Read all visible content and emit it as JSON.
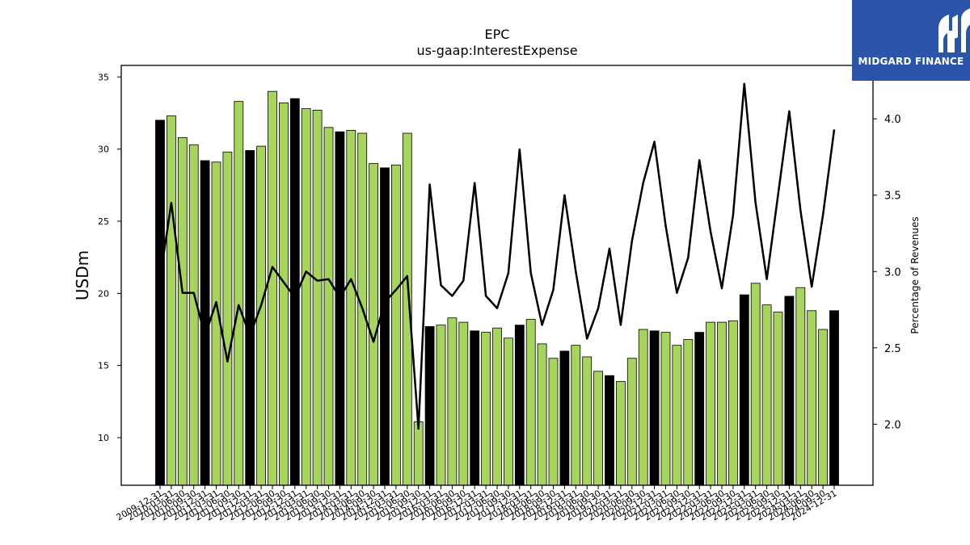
{
  "chart_data": {
    "type": "bar",
    "title": "EPC",
    "subtitle": "us-gaap:InterestExpense",
    "ylabel": "USDm",
    "y2label": "Percentage of Revenues",
    "ylim": [
      6.7,
      35.8
    ],
    "y2lim": [
      1.6,
      4.35
    ],
    "yticks": [
      10,
      15,
      20,
      25,
      30,
      35
    ],
    "y2ticks": [
      2.0,
      2.5,
      3.0,
      3.5,
      4.0
    ],
    "categories": [
      "2009-12-31",
      "2010-03-31",
      "2010-06-30",
      "2010-09-30",
      "2010-12-31",
      "2011-03-31",
      "2011-06-30",
      "2011-09-30",
      "2011-12-31",
      "2012-03-31",
      "2012-06-30",
      "2012-09-30",
      "2012-12-31",
      "2013-03-31",
      "2013-06-30",
      "2013-09-30",
      "2013-12-31",
      "2014-03-31",
      "2014-06-30",
      "2014-09-30",
      "2014-12-31",
      "2015-03-31",
      "2015-06-30",
      "2015-09-30",
      "2015-12-31",
      "2016-03-31",
      "2016-06-30",
      "2016-09-30",
      "2016-12-31",
      "2017-03-31",
      "2017-06-30",
      "2017-09-30",
      "2017-12-31",
      "2018-03-31",
      "2018-06-30",
      "2018-09-30",
      "2018-12-31",
      "2019-03-31",
      "2019-06-30",
      "2019-09-30",
      "2019-12-31",
      "2020-03-31",
      "2020-06-30",
      "2020-09-30",
      "2020-12-31",
      "2021-03-31",
      "2021-06-30",
      "2021-09-30",
      "2021-12-31",
      "2022-03-31",
      "2022-06-30",
      "2022-09-30",
      "2022-12-31",
      "2023-03-31",
      "2023-06-30",
      "2023-09-30",
      "2023-12-31",
      "2024-03-31",
      "2024-06-30",
      "2024-09-30",
      "2024-12-31"
    ],
    "series": [
      {
        "kind": "bar",
        "values": [
          32.0,
          32.3,
          30.8,
          30.3,
          29.2,
          29.1,
          29.8,
          33.3,
          29.9,
          30.2,
          34.0,
          33.2,
          33.5,
          32.8,
          32.7,
          31.5,
          31.2,
          31.3,
          31.1,
          29.0,
          28.7,
          28.9,
          31.1,
          11.1,
          17.7,
          17.8,
          18.3,
          18.0,
          17.4,
          17.3,
          17.6,
          16.9,
          17.8,
          18.2,
          16.5,
          15.5,
          16.0,
          16.4,
          15.6,
          14.6,
          14.3,
          13.9,
          15.5,
          17.5,
          17.4,
          17.3,
          16.4,
          16.8,
          17.3,
          18.0,
          18.0,
          18.1,
          19.9,
          20.7,
          19.2,
          18.7,
          19.8,
          20.4,
          18.8,
          17.5,
          18.8
        ]
      },
      {
        "kind": "line",
        "axis": "right",
        "values": [
          2.95,
          3.45,
          2.86,
          2.86,
          2.58,
          2.8,
          2.41,
          2.78,
          2.58,
          2.78,
          3.03,
          2.93,
          2.83,
          3.0,
          2.94,
          2.95,
          2.83,
          2.95,
          2.76,
          2.54,
          2.8,
          2.88,
          2.97,
          1.97,
          3.57,
          2.91,
          2.84,
          2.94,
          3.58,
          2.84,
          2.76,
          2.99,
          3.8,
          2.99,
          2.65,
          2.88,
          3.5,
          3.0,
          2.56,
          2.76,
          3.15,
          2.65,
          3.2,
          3.58,
          3.85,
          3.3,
          2.86,
          3.09,
          3.73,
          3.26,
          2.89,
          3.37,
          4.23,
          3.45,
          2.95,
          3.5,
          4.05,
          3.4,
          2.9,
          3.37,
          3.93
        ]
      }
    ],
    "bar_colors": {
      "december": "#000000",
      "other": "#a6d45c",
      "edge": "#000000"
    },
    "line_color": "#000000"
  },
  "logo": {
    "text": "MIDGARD FINANCE",
    "bg": "#2a55a8"
  }
}
